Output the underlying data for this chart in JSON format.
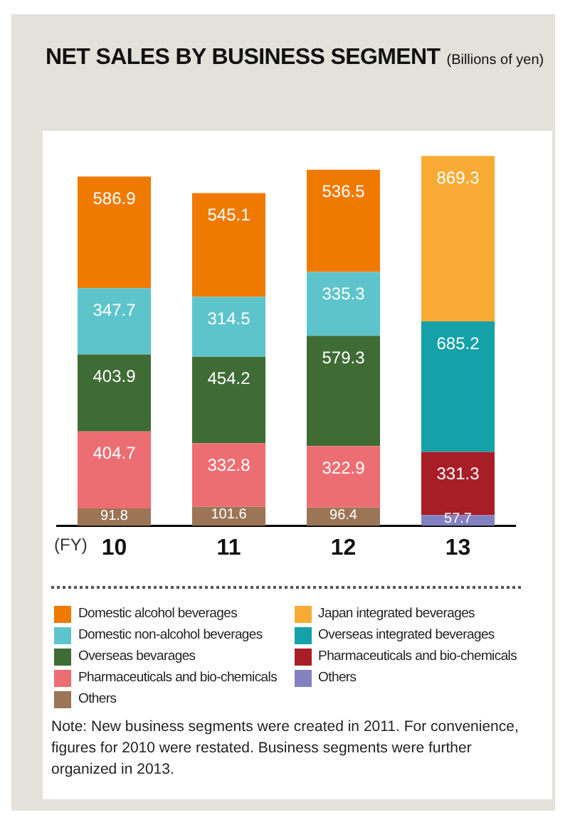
{
  "chart_data": {
    "type": "bar",
    "title": "NET SALES BY BUSINESS SEGMENT",
    "subtitle": "(Billions of yen)",
    "xlabel": "(FY)",
    "categories": [
      "10",
      "11",
      "12",
      "13"
    ],
    "stacked": true,
    "data_labels": true,
    "legend": "bottom",
    "grid": false,
    "series": [
      {
        "name": "Others",
        "color": "#9b7556",
        "values": [
          91.8,
          101.6,
          96.4,
          null
        ]
      },
      {
        "name": "Pharmaceuticals and bio-chemicals",
        "color": "#ec6e72",
        "values": [
          404.7,
          332.8,
          322.9,
          null
        ]
      },
      {
        "name": "Overseas bevarages",
        "color": "#3f6b34",
        "values": [
          403.9,
          454.2,
          579.3,
          null
        ]
      },
      {
        "name": "Domestic non-alcohol beverages",
        "color": "#5ec4cb",
        "values": [
          347.7,
          314.5,
          335.3,
          null
        ]
      },
      {
        "name": "Domestic alcohol beverages",
        "color": "#f07a00",
        "values": [
          586.9,
          545.1,
          536.5,
          null
        ]
      },
      {
        "name": "Others",
        "color": "#8381c0",
        "values": [
          null,
          null,
          null,
          57.7
        ]
      },
      {
        "name": "Pharmaceuticals and bio-chemicals",
        "color": "#a81e27",
        "values": [
          null,
          null,
          null,
          331.3
        ]
      },
      {
        "name": "Overseas integrated beverages",
        "color": "#14a1a8",
        "values": [
          null,
          null,
          null,
          685.2
        ]
      },
      {
        "name": "Japan integrated beverages",
        "color": "#f7ab35",
        "values": [
          null,
          null,
          null,
          869.3
        ]
      }
    ],
    "annotations": [
      "Note: New business segments were created in 2011. For convenience, figures for 2010 were restated. Business segments were further organized in 2013."
    ]
  }
}
